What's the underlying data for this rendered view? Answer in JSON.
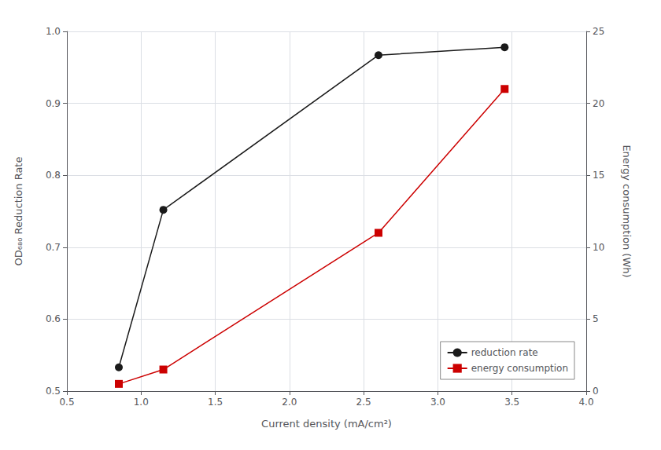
{
  "chart_data": {
    "type": "line",
    "xlabel": "Current density (mA/cm²)",
    "ylabel": "OD₆₈₀ Reduction Rate",
    "y2label": "Energy consumption (Wh)",
    "x": [
      0.85,
      1.15,
      2.6,
      3.45
    ],
    "series": [
      {
        "name": "reduction rate",
        "color": "#1a1a1a",
        "marker": "circle",
        "values": [
          0.533,
          0.752,
          0.967,
          0.978
        ]
      },
      {
        "name": "energy consumption",
        "color": "#cc0000",
        "marker": "square",
        "axis": "y2",
        "values": [
          0.5,
          1.5,
          11.0,
          21.0
        ]
      }
    ],
    "xlim": [
      0.5,
      4.0
    ],
    "xticks": [
      0.5,
      {
        "value": 1,
        "label": "1.0"
      },
      1.5,
      {
        "value": 2,
        "label": "2.0"
      },
      2.5,
      {
        "value": 3,
        "label": "3.0"
      },
      3.5,
      {
        "value": 4,
        "label": "4.0"
      }
    ],
    "ylim": [
      0.5,
      1.0
    ],
    "yticks": [
      0.5,
      0.6,
      0.7,
      0.8,
      0.9,
      {
        "value": 1,
        "label": "1.0"
      }
    ],
    "y2lim": [
      0,
      25
    ],
    "y2ticks": [
      0,
      5,
      10,
      15,
      20,
      25
    ],
    "grid": true,
    "legend": "lower right"
  }
}
